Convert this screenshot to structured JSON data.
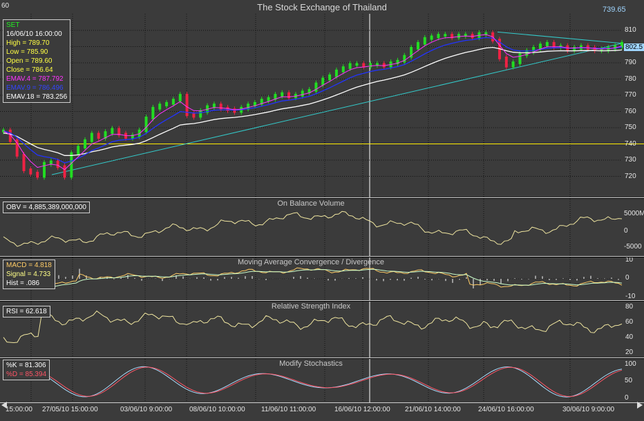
{
  "window": {
    "code": "60",
    "title": "The Stock Exchange of Thailand",
    "corner_value": "739.65"
  },
  "colors": {
    "background": "#3b3b3b",
    "up": "#22dd22",
    "down": "#ee2244",
    "cyan": "#33cccc",
    "ema4": "#ff33ff",
    "ema9": "#2233ff",
    "ema18": "#ffffff",
    "line": "#f0e6a0"
  },
  "price": {
    "info": {
      "symbol": "SET",
      "datetime": "16/06/10 16:00:00",
      "high": "High  = 789.70",
      "low": "Low  = 785.90",
      "open": "Open = 789.60",
      "close": "Close = 786.64",
      "ema4": "EMAV.4 = 787.792",
      "ema9": "EMAV.9 = 786.496",
      "ema18": "EMAV.18 = 783.256"
    },
    "yticks": [
      "810",
      "800",
      "790",
      "780",
      "770",
      "760",
      "750",
      "740",
      "730",
      "720"
    ],
    "last_badge": "802.5",
    "path": [
      748,
      742,
      733,
      724,
      722,
      720,
      728,
      729,
      726,
      720,
      734,
      738,
      742,
      746,
      744,
      747,
      749,
      746,
      744,
      745,
      748,
      756,
      762,
      764,
      765,
      767,
      770,
      758,
      757,
      760,
      763,
      764,
      762,
      761,
      760,
      762,
      764,
      765,
      767,
      768,
      770,
      771,
      769,
      770,
      772,
      773,
      777,
      780,
      782,
      785,
      787,
      789,
      789,
      788,
      789,
      789,
      788,
      790,
      791,
      794,
      799,
      802,
      805,
      806,
      807,
      807,
      806,
      807,
      807,
      806,
      808,
      808,
      804,
      793,
      788,
      790,
      795,
      797,
      799,
      801,
      802,
      800,
      800,
      798,
      799,
      800,
      799,
      798,
      798,
      799,
      800,
      802
    ]
  },
  "obv": {
    "title": "On Balance Volume",
    "label": "OBV = 4,885,389,000,000",
    "yticks": [
      "5000M",
      "0",
      "-5000"
    ]
  },
  "macd": {
    "title": "Moving Average Convergence / Divergence",
    "macd": "MACD = 4.818",
    "signal": "Signal = 4.733",
    "hist": "Hist = .086",
    "yticks": [
      "10",
      "0",
      "-10"
    ]
  },
  "rsi": {
    "title": "Relative Strength Index",
    "label": "RSI = 62.618",
    "yticks": [
      "80",
      "60",
      "40",
      "20"
    ]
  },
  "stoch": {
    "title": "Modify Stochastics",
    "k": "%K = 81.306",
    "d": "%D = 85.394",
    "yticks": [
      "100",
      "50",
      "0"
    ]
  },
  "xaxis": [
    "15:00:00",
    "27/05/10 15:00:00",
    "03/06/10 9:00:00",
    "08/06/10 10:00:00",
    "11/06/10 11:00:00",
    "16/06/10 12:00:00",
    "21/06/10 14:00:00",
    "24/06/10 16:00:00",
    "30/06/10 9:00:00"
  ]
}
